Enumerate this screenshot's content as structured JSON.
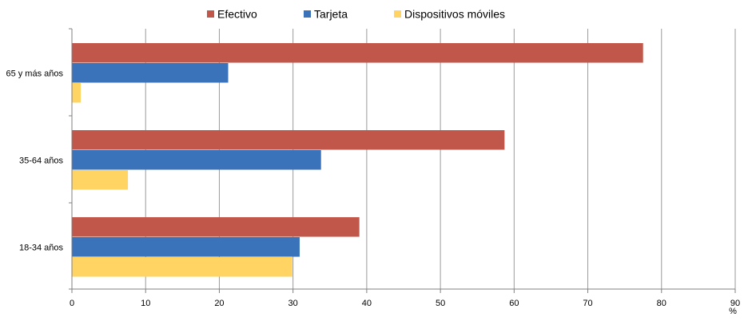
{
  "chart_data": {
    "type": "bar",
    "orientation": "horizontal",
    "categories": [
      "65 y más años",
      "35-64 años",
      "18-34 años"
    ],
    "series": [
      {
        "name": "Efectivo",
        "color": "#C0574A",
        "values": [
          77.5,
          58.7,
          39.0
        ]
      },
      {
        "name": "Tarjeta",
        "color": "#3A73B9",
        "values": [
          21.2,
          33.8,
          30.9
        ]
      },
      {
        "name": "Dispositivos móviles",
        "color": "#FFD462",
        "values": [
          1.2,
          7.6,
          29.9
        ]
      }
    ],
    "xticks": [
      "0",
      "10",
      "20",
      "30",
      "40",
      "50",
      "60",
      "70",
      "80",
      "90"
    ],
    "xlim": [
      0,
      90
    ],
    "xunit": "%",
    "legend": "top",
    "grid": "vertical"
  }
}
